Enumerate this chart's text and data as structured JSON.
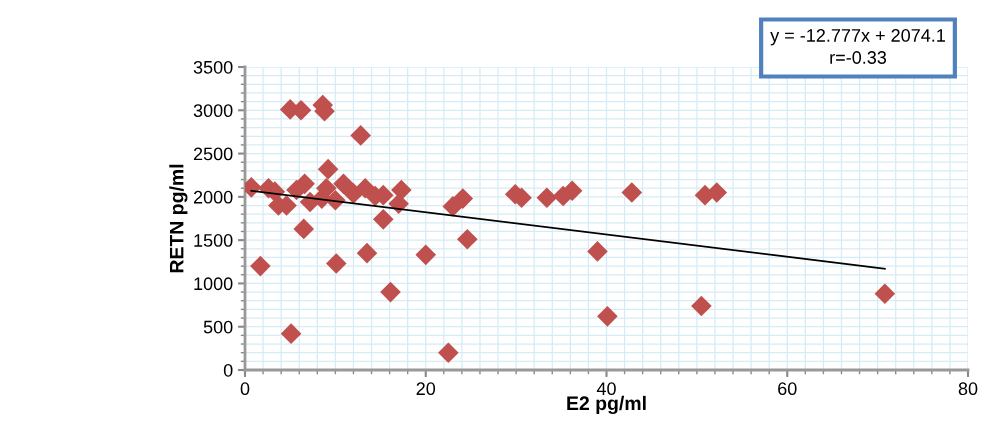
{
  "chart_data": {
    "type": "scatter",
    "xlabel": "E2 pg/ml",
    "ylabel": "RETN pg/ml",
    "annotations": [
      "y = -12.777x + 2074.1",
      "r=-0.33"
    ],
    "xlim": [
      0,
      80
    ],
    "xticks": [
      0,
      20,
      40,
      60,
      80
    ],
    "ylim": [
      0,
      3500
    ],
    "yticks": [
      0,
      500,
      1000,
      1500,
      2000,
      2500,
      3000,
      3500
    ],
    "grid": true,
    "legend": false,
    "marker": "diamond",
    "series": [
      {
        "color": "#c0504d",
        "x": [
          0.7,
          1.7,
          2.6,
          3.3,
          3.7,
          4.6,
          5.7,
          6.6,
          7.2,
          8.5,
          9.0,
          9.2,
          10.0,
          10.9,
          12.0,
          13.3,
          14.4,
          15.3,
          17.0,
          17.3,
          6.5,
          10.1,
          13.5,
          15.3,
          16.1,
          20.0,
          23.0,
          24.1,
          24.6,
          5.1,
          22.5,
          5.0,
          6.2,
          8.6,
          8.8,
          12.8,
          29.9,
          30.6,
          33.4,
          35.2,
          36.2,
          42.8,
          39.0,
          40.1,
          50.9,
          52.2,
          50.5,
          70.8
        ],
        "values": [
          2110,
          1200,
          2100,
          2060,
          1900,
          1900,
          2080,
          2150,
          1940,
          1980,
          2100,
          2320,
          1960,
          2150,
          2040,
          2100,
          2010,
          2020,
          1920,
          2080,
          1630,
          1230,
          1350,
          1740,
          900,
          1330,
          1890,
          1980,
          1510,
          420,
          200,
          3010,
          3000,
          3060,
          2990,
          2710,
          2030,
          1990,
          1990,
          2010,
          2070,
          2050,
          1370,
          620,
          2020,
          2050,
          740,
          880
        ]
      },
      {
        "type": "line",
        "color": "#000000",
        "marker": "none",
        "x": [
          0.7,
          70.8
        ],
        "values": [
          2070,
          1170
        ]
      }
    ]
  }
}
